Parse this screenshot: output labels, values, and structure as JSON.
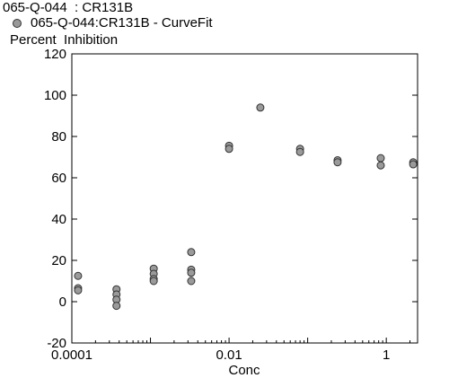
{
  "chart_data": {
    "type": "scatter",
    "title": "065-Q-044  : CR131B",
    "legend": [
      {
        "label": "065-Q-044:CR131B - CurveFit",
        "marker": "circle",
        "color": "#9a9a9a"
      }
    ],
    "legend_position": "top-left",
    "xlabel": "Conc",
    "ylabel": "Percent  Inhibition",
    "xscale": "log",
    "xlim": [
      0.0001,
      2.5
    ],
    "ylim": [
      -20,
      120
    ],
    "xticks": [
      {
        "value": 0.0001,
        "label": "0.0001"
      },
      {
        "value": 0.01,
        "label": "0.01"
      },
      {
        "value": 1,
        "label": "1"
      }
    ],
    "yticks": [
      -20,
      0,
      20,
      40,
      60,
      80,
      100,
      120
    ],
    "grid": false,
    "series": [
      {
        "name": "065-Q-044:CR131B - CurveFit",
        "points": [
          {
            "x": 0.00012,
            "y": 12.5
          },
          {
            "x": 0.00012,
            "y": 6.5
          },
          {
            "x": 0.00012,
            "y": 5.5
          },
          {
            "x": 0.00037,
            "y": 6
          },
          {
            "x": 0.00037,
            "y": 3.5
          },
          {
            "x": 0.00037,
            "y": 1
          },
          {
            "x": 0.00037,
            "y": -2
          },
          {
            "x": 0.0011,
            "y": 16
          },
          {
            "x": 0.0011,
            "y": 13.5
          },
          {
            "x": 0.0011,
            "y": 11
          },
          {
            "x": 0.0011,
            "y": 10
          },
          {
            "x": 0.0033,
            "y": 24
          },
          {
            "x": 0.0033,
            "y": 15.5
          },
          {
            "x": 0.0033,
            "y": 14
          },
          {
            "x": 0.0033,
            "y": 10
          },
          {
            "x": 0.01,
            "y": 75.5
          },
          {
            "x": 0.01,
            "y": 74
          },
          {
            "x": 0.025,
            "y": 94
          },
          {
            "x": 0.08,
            "y": 74
          },
          {
            "x": 0.08,
            "y": 72.5
          },
          {
            "x": 0.24,
            "y": 68.5
          },
          {
            "x": 0.24,
            "y": 67.5
          },
          {
            "x": 0.85,
            "y": 69.5
          },
          {
            "x": 0.85,
            "y": 66
          },
          {
            "x": 2.2,
            "y": 67.5
          },
          {
            "x": 2.2,
            "y": 66.5
          }
        ]
      }
    ]
  }
}
